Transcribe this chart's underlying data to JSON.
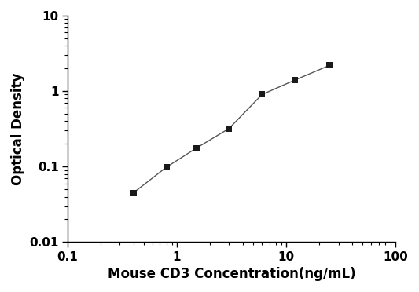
{
  "x_data": [
    0.4,
    0.8,
    1.5,
    3.0,
    6.0,
    12.0,
    25.0
  ],
  "y_data": [
    0.045,
    0.098,
    0.175,
    0.32,
    0.9,
    1.4,
    2.2
  ],
  "xlabel": "Mouse CD3 Concentration(ng/mL)",
  "ylabel": "Optical Density",
  "xlim": [
    0.1,
    100
  ],
  "ylim": [
    0.01,
    10
  ],
  "marker": "s",
  "marker_color": "#1a1a1a",
  "marker_size": 6,
  "line_color": "#555555",
  "line_width": 1.0,
  "background_color": "#ffffff",
  "xlabel_fontsize": 12,
  "ylabel_fontsize": 12,
  "tick_fontsize": 11,
  "xlabel_fontweight": "bold",
  "ylabel_fontweight": "bold",
  "tick_fontweight": "bold"
}
